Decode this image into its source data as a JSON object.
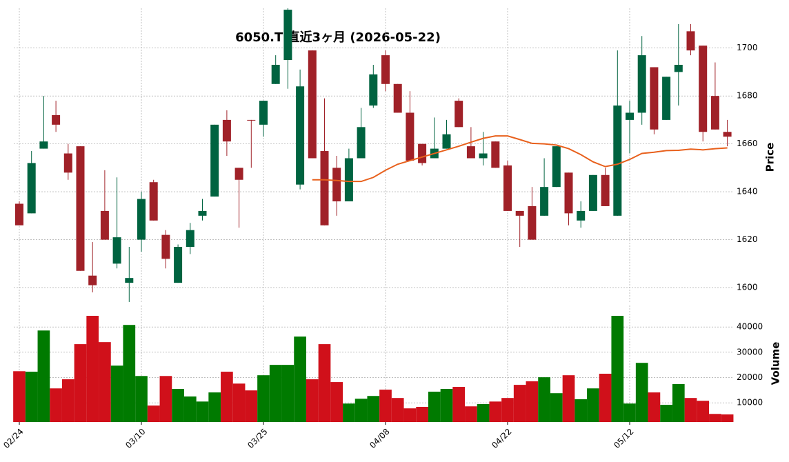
{
  "chart_data": [
    {
      "type": "candlestick",
      "title": "6050.T 直近3ヶ月 (2026-05-22)",
      "ylabel": "Price",
      "up_color": "#006340",
      "down_color": "#a02128",
      "open": [
        1635,
        1631,
        1658,
        1672,
        1656,
        1659,
        1605,
        1632,
        1610,
        1602,
        1620,
        1644,
        1622,
        1602,
        1617,
        1630,
        1638,
        1670,
        1650,
        1670,
        1668,
        1685,
        1695,
        1643,
        1699,
        1657,
        1650,
        1636,
        1654,
        1676,
        1697,
        1685,
        1673,
        1660,
        1654,
        1658,
        1678,
        1659,
        1654,
        1661,
        1651,
        1632,
        1634,
        1630,
        1642,
        1648,
        1628,
        1632,
        1647,
        1630,
        1670,
        1673,
        1692,
        1670,
        1690,
        1707,
        1701,
        1680,
        1665
      ],
      "high": [
        1636,
        1657,
        1680,
        1678,
        1660,
        1659,
        1619,
        1649,
        1646,
        1617,
        1640,
        1645,
        1624,
        1618,
        1627,
        1637,
        1668,
        1674,
        1650,
        1670,
        1678,
        1697,
        1718,
        1691,
        1699,
        1679,
        1655,
        1658,
        1675,
        1693,
        1699,
        1685,
        1682,
        1660,
        1671,
        1670,
        1679,
        1667,
        1665,
        1661,
        1653,
        1632,
        1642,
        1654,
        1659,
        1648,
        1636,
        1647,
        1650,
        1699,
        1678,
        1705,
        1692,
        1688,
        1710,
        1710,
        1701,
        1694,
        1670
      ],
      "low": [
        1626,
        1631,
        1658,
        1665,
        1645,
        1607,
        1598,
        1620,
        1608,
        1594,
        1615,
        1628,
        1608,
        1602,
        1614,
        1628,
        1638,
        1655,
        1625,
        1650,
        1663,
        1685,
        1683,
        1641,
        1654,
        1626,
        1630,
        1636,
        1654,
        1675,
        1682,
        1673,
        1653,
        1651,
        1654,
        1658,
        1667,
        1654,
        1651,
        1650,
        1632,
        1617,
        1620,
        1630,
        1642,
        1626,
        1625,
        1632,
        1634,
        1630,
        1656,
        1668,
        1664,
        1670,
        1676,
        1697,
        1661,
        1666,
        1659
      ],
      "close": [
        1626,
        1652,
        1661,
        1668,
        1648,
        1607,
        1601,
        1620,
        1621,
        1604,
        1637,
        1628,
        1612,
        1617,
        1624,
        1632,
        1668,
        1661,
        1645,
        1669.8,
        1678,
        1693,
        1716,
        1684,
        1654,
        1626,
        1636,
        1654,
        1667,
        1689,
        1685,
        1673,
        1653,
        1652,
        1658,
        1664,
        1667,
        1654,
        1656,
        1650,
        1632,
        1630,
        1620,
        1642,
        1659,
        1631,
        1632,
        1647,
        1634,
        1676,
        1673,
        1697,
        1666,
        1688,
        1693,
        1699,
        1665,
        1666,
        1663
      ],
      "ma": {
        "color": "#e8601c",
        "values": [
          null,
          null,
          null,
          null,
          null,
          null,
          null,
          null,
          null,
          null,
          null,
          null,
          null,
          null,
          null,
          null,
          null,
          null,
          null,
          null,
          null,
          null,
          null,
          null,
          1645,
          1645,
          1644.7,
          1644.3,
          1644.3,
          1646,
          1649,
          1651.5,
          1653,
          1654.5,
          1656,
          1657.5,
          1659,
          1660.7,
          1662.3,
          1663.3,
          1663.3,
          1661.8,
          1660.2,
          1660,
          1659.5,
          1658,
          1655.5,
          1652.5,
          1650.5,
          1651.5,
          1653.5,
          1656,
          1656.5,
          1657.2,
          1657.3,
          1657.8,
          1657.5,
          1658,
          1658.3
        ]
      },
      "ylim": [
        1593.4,
        1716.6
      ],
      "yticks": [
        1600,
        1620,
        1640,
        1660,
        1680,
        1700
      ],
      "grid": true
    },
    {
      "type": "bar",
      "ylabel": "Volume",
      "up_color": "#007a00",
      "down_color": "#d0101a",
      "categories": [
        "02/24",
        null,
        null,
        null,
        null,
        null,
        null,
        null,
        null,
        null,
        "03/10",
        null,
        null,
        null,
        null,
        null,
        null,
        null,
        null,
        null,
        "03/25",
        null,
        null,
        null,
        null,
        null,
        null,
        null,
        null,
        null,
        "04/08",
        null,
        null,
        null,
        null,
        null,
        null,
        null,
        null,
        null,
        "04/22",
        null,
        null,
        null,
        null,
        null,
        null,
        null,
        null,
        null,
        "05/12",
        null,
        null,
        null,
        null,
        null,
        null,
        null,
        null
      ],
      "values": [
        22500,
        22300,
        38600,
        15700,
        19300,
        33200,
        44400,
        34000,
        24700,
        40800,
        20600,
        8900,
        20600,
        15500,
        12500,
        10500,
        14100,
        22300,
        17600,
        14900,
        20900,
        25000,
        25000,
        36200,
        19300,
        33200,
        18200,
        9700,
        11600,
        12700,
        15200,
        11900,
        7800,
        8400,
        14400,
        15500,
        16300,
        8600,
        9500,
        10500,
        11900,
        17100,
        18500,
        20100,
        13800,
        20900,
        11400,
        15700,
        21500,
        44400,
        9700,
        25800,
        14100,
        9200,
        17400,
        11900,
        10800,
        5600,
        5400
      ],
      "ylim": [
        2400,
        48500
      ],
      "yticks": [
        10000,
        20000,
        30000,
        40000
      ],
      "grid": true
    }
  ]
}
